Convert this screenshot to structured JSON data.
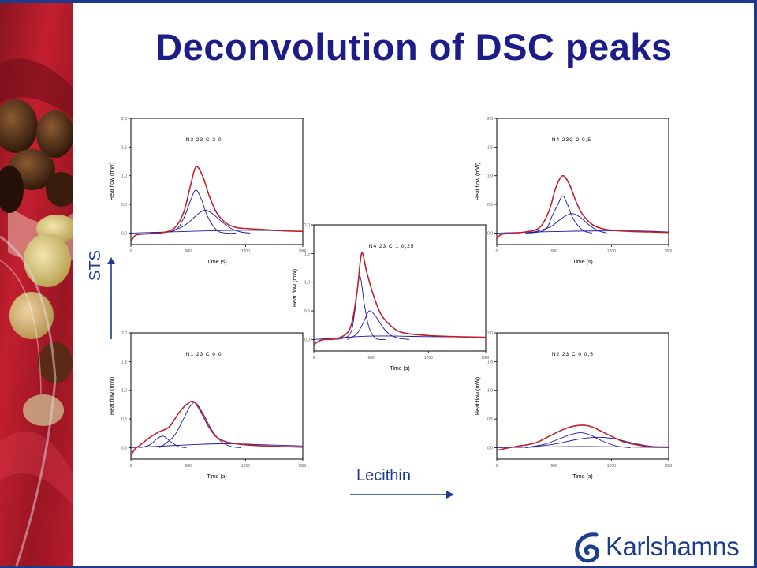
{
  "slide": {
    "title": "Deconvolution of DSC peaks",
    "y_direction_label": "STS",
    "x_direction_label": "Lecithin",
    "logo_text": "Karlshamns",
    "colors": {
      "title": "#1d1d8a",
      "measured": "#c0202a",
      "fitted": "#1a1aa0",
      "accent": "#1d3e8c"
    }
  },
  "chart_data": [
    {
      "type": "line",
      "annotation": "N3 23 C 2 0",
      "xlabel": "Time (s)",
      "ylabel": "Heat flow (mW)",
      "xlim": [
        0,
        1800
      ],
      "ylim": [
        -0.2,
        2.0
      ],
      "xticks": [
        "0",
        "600",
        "1200",
        "1800"
      ],
      "yticks": [
        "0,0",
        "0,5",
        "1,0",
        "1,5",
        "2,0"
      ],
      "series": [
        {
          "role": "measured",
          "x": [
            0,
            40,
            100,
            300,
            450,
            550,
            620,
            680,
            750,
            820,
            900,
            1000,
            1100,
            1200,
            1400,
            1600,
            1800
          ],
          "y": [
            -0.15,
            -0.05,
            -0.02,
            0.0,
            0.08,
            0.35,
            0.8,
            1.15,
            1.0,
            0.65,
            0.35,
            0.17,
            0.1,
            0.08,
            0.06,
            0.04,
            0.03
          ]
        },
        {
          "role": "fit",
          "x": [
            200,
            450,
            550,
            620,
            680,
            740,
            800,
            900,
            1000,
            1100
          ],
          "y": [
            0.0,
            0.04,
            0.25,
            0.55,
            0.75,
            0.58,
            0.3,
            0.05,
            0.0,
            0.0
          ]
        },
        {
          "role": "fit",
          "x": [
            300,
            500,
            600,
            700,
            780,
            860,
            950,
            1050,
            1150,
            1250
          ],
          "y": [
            0.0,
            0.08,
            0.18,
            0.33,
            0.4,
            0.33,
            0.2,
            0.08,
            0.02,
            0.0
          ]
        },
        {
          "role": "fit",
          "x": [
            0,
            600,
            1200,
            1800
          ],
          "y": [
            0.0,
            0.03,
            0.05,
            0.03
          ]
        }
      ]
    },
    {
      "type": "line",
      "annotation": "N4 23C 2 0,5",
      "xlabel": "Time (s)",
      "ylabel": "Heat flow (mW)",
      "xlim": [
        0,
        1800
      ],
      "ylim": [
        -0.2,
        2.0
      ],
      "xticks": [
        "0",
        "600",
        "1200",
        "1800"
      ],
      "yticks": [
        "0,0",
        "0,5",
        "1,0",
        "1,5",
        "2,0"
      ],
      "series": [
        {
          "role": "measured",
          "x": [
            0,
            40,
            100,
            300,
            450,
            550,
            620,
            690,
            760,
            830,
            900,
            1000,
            1100,
            1200,
            1400,
            1600,
            1800
          ],
          "y": [
            -0.1,
            -0.03,
            -0.01,
            0.02,
            0.1,
            0.4,
            0.8,
            1.0,
            0.85,
            0.55,
            0.32,
            0.15,
            0.08,
            0.05,
            0.03,
            0.02,
            0.01
          ]
        },
        {
          "role": "fit",
          "x": [
            300,
            500,
            580,
            640,
            690,
            740,
            800,
            900,
            1000
          ],
          "y": [
            0.0,
            0.05,
            0.3,
            0.5,
            0.65,
            0.5,
            0.25,
            0.05,
            0.0
          ]
        },
        {
          "role": "fit",
          "x": [
            350,
            550,
            650,
            720,
            790,
            870,
            960,
            1050,
            1150
          ],
          "y": [
            0.0,
            0.1,
            0.22,
            0.3,
            0.34,
            0.28,
            0.15,
            0.05,
            0.0
          ]
        },
        {
          "role": "fit",
          "x": [
            0,
            700,
            1400,
            1800
          ],
          "y": [
            0.0,
            0.03,
            0.04,
            0.02
          ]
        }
      ]
    },
    {
      "type": "line",
      "annotation": "N4 23 C 1 0,25",
      "xlabel": "Time (s)",
      "ylabel": "Heat flow (mW)",
      "xlim": [
        0,
        1800
      ],
      "ylim": [
        -0.2,
        2.0
      ],
      "xticks": [
        "0",
        "600",
        "1200",
        "1800"
      ],
      "yticks": [
        "0,0",
        "0,5",
        "1,0",
        "1,5",
        "2,0"
      ],
      "series": [
        {
          "role": "measured",
          "x": [
            0,
            30,
            100,
            250,
            380,
            450,
            500,
            550,
            600,
            650,
            700,
            780,
            880,
            1000,
            1200,
            1500,
            1800
          ],
          "y": [
            -0.1,
            -0.05,
            0.0,
            0.02,
            0.2,
            0.8,
            1.5,
            1.2,
            0.9,
            0.65,
            0.45,
            0.28,
            0.15,
            0.1,
            0.07,
            0.05,
            0.04
          ]
        },
        {
          "role": "fit",
          "x": [
            250,
            380,
            430,
            480,
            530,
            580,
            650,
            750
          ],
          "y": [
            0.0,
            0.1,
            0.5,
            1.1,
            0.6,
            0.2,
            0.02,
            0.0
          ]
        },
        {
          "role": "fit",
          "x": [
            350,
            450,
            520,
            580,
            650,
            720,
            800,
            900,
            1000
          ],
          "y": [
            0.0,
            0.1,
            0.3,
            0.5,
            0.4,
            0.22,
            0.08,
            0.02,
            0.0
          ]
        },
        {
          "role": "fit",
          "x": [
            0,
            600,
            1200,
            1800
          ],
          "y": [
            0.0,
            0.06,
            0.05,
            0.04
          ]
        }
      ]
    },
    {
      "type": "line",
      "annotation": "N1 23 C 0 0",
      "xlabel": "Time (s)",
      "ylabel": "Heat flow (mW)",
      "xlim": [
        0,
        1800
      ],
      "ylim": [
        -0.2,
        2.0
      ],
      "xticks": [
        "0",
        "600",
        "1200",
        "1800"
      ],
      "yticks": [
        "0,0",
        "0,5",
        "1,0",
        "1,5",
        "2,0"
      ],
      "series": [
        {
          "role": "measured",
          "x": [
            0,
            40,
            100,
            200,
            300,
            400,
            500,
            580,
            660,
            740,
            820,
            900,
            1000,
            1100,
            1200,
            1400,
            1600,
            1800
          ],
          "y": [
            -0.15,
            -0.03,
            0.05,
            0.18,
            0.28,
            0.36,
            0.6,
            0.75,
            0.8,
            0.6,
            0.35,
            0.18,
            0.1,
            0.07,
            0.05,
            0.03,
            0.02,
            0.01
          ]
        },
        {
          "role": "fit",
          "x": [
            100,
            200,
            270,
            340,
            420,
            500,
            580
          ],
          "y": [
            0.0,
            0.05,
            0.15,
            0.2,
            0.1,
            0.02,
            0.0
          ]
        },
        {
          "role": "fit",
          "x": [
            300,
            450,
            550,
            620,
            680,
            760,
            850,
            950,
            1050,
            1150
          ],
          "y": [
            0.0,
            0.2,
            0.5,
            0.72,
            0.78,
            0.58,
            0.3,
            0.1,
            0.02,
            0.0
          ]
        },
        {
          "role": "fit",
          "x": [
            0,
            600,
            1000,
            1400,
            1800
          ],
          "y": [
            0.0,
            0.05,
            0.07,
            0.05,
            0.03
          ]
        }
      ]
    },
    {
      "type": "line",
      "annotation": "N2 23 C 0 0,5",
      "xlabel": "Time (s)",
      "ylabel": "Heat flow (mW)",
      "xlim": [
        0,
        1800
      ],
      "ylim": [
        -0.2,
        2.0
      ],
      "xticks": [
        "0",
        "600",
        "1200",
        "1800"
      ],
      "yticks": [
        "0,0",
        "0,5",
        "1,0",
        "1,5",
        "2,0"
      ],
      "series": [
        {
          "role": "measured",
          "x": [
            0,
            100,
            200,
            400,
            550,
            700,
            820,
            920,
            1000,
            1100,
            1200,
            1300,
            1400,
            1500,
            1600,
            1800
          ],
          "y": [
            -0.05,
            -0.01,
            0.02,
            0.08,
            0.2,
            0.32,
            0.38,
            0.39,
            0.36,
            0.28,
            0.2,
            0.12,
            0.07,
            0.04,
            0.02,
            0.01
          ]
        },
        {
          "role": "fit",
          "x": [
            300,
            500,
            650,
            780,
            880,
            980,
            1100,
            1250,
            1400
          ],
          "y": [
            0.0,
            0.06,
            0.15,
            0.23,
            0.26,
            0.22,
            0.12,
            0.03,
            0.0
          ]
        },
        {
          "role": "fit",
          "x": [
            300,
            600,
            800,
            950,
            1100,
            1250,
            1400,
            1550,
            1700
          ],
          "y": [
            0.0,
            0.06,
            0.13,
            0.17,
            0.18,
            0.15,
            0.09,
            0.04,
            0.01
          ]
        },
        {
          "role": "fit",
          "x": [
            0,
            900,
            1800
          ],
          "y": [
            0.0,
            0.02,
            0.0
          ]
        }
      ]
    }
  ]
}
